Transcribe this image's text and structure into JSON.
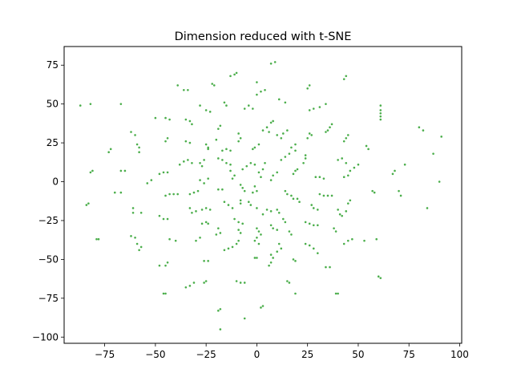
{
  "chart_data": {
    "type": "scatter",
    "title": "Dimension reduced with t-SNE",
    "xlabel": "",
    "ylabel": "",
    "xlim": [
      -95,
      101
    ],
    "ylim": [
      -104,
      87
    ],
    "xticks": [
      -75,
      -50,
      -25,
      0,
      25,
      50,
      75,
      100
    ],
    "yticks": [
      75,
      50,
      25,
      0,
      -25,
      -50,
      -75,
      -100
    ],
    "grid": false,
    "legend": "none",
    "point_color": "#2ca02c",
    "series": [
      {
        "points": [
          [
            -87,
            49
          ],
          [
            -82,
            50
          ],
          [
            -67,
            50
          ],
          [
            -39,
            62
          ],
          [
            -36,
            59
          ],
          [
            -34,
            59
          ],
          [
            -22,
            63
          ],
          [
            -21,
            62
          ],
          [
            -13,
            68
          ],
          [
            -11,
            69
          ],
          [
            -10,
            70
          ],
          [
            0,
            64
          ],
          [
            7,
            76
          ],
          [
            9,
            77
          ],
          [
            11,
            53
          ],
          [
            14,
            51
          ],
          [
            25,
            60
          ],
          [
            26,
            62
          ],
          [
            43,
            66
          ],
          [
            44,
            68
          ],
          [
            61,
            49
          ],
          [
            61,
            46
          ],
          [
            61,
            44
          ],
          [
            61,
            42
          ],
          [
            61,
            40
          ],
          [
            -50,
            41
          ],
          [
            -45,
            41
          ],
          [
            -43,
            40
          ],
          [
            -35,
            40
          ],
          [
            -33,
            39
          ],
          [
            -32,
            37
          ],
          [
            -28,
            49
          ],
          [
            -25,
            46
          ],
          [
            -23,
            45
          ],
          [
            -16,
            51
          ],
          [
            -15,
            49
          ],
          [
            -6,
            47
          ],
          [
            -4,
            49
          ],
          [
            -2,
            47
          ],
          [
            0,
            56
          ],
          [
            2,
            58
          ],
          [
            4,
            59
          ],
          [
            26,
            46
          ],
          [
            28,
            47
          ],
          [
            31,
            48
          ],
          [
            34,
            50
          ],
          [
            -62,
            32
          ],
          [
            -60,
            30
          ],
          [
            -59,
            24
          ],
          [
            -58,
            22
          ],
          [
            -58,
            19
          ],
          [
            -73,
            19
          ],
          [
            -72,
            21
          ],
          [
            -45,
            26
          ],
          [
            -44,
            28
          ],
          [
            -35,
            26
          ],
          [
            -33,
            25
          ],
          [
            -25,
            24
          ],
          [
            -24,
            22
          ],
          [
            -24,
            21
          ],
          [
            -18,
            36
          ],
          [
            -19,
            34
          ],
          [
            -20,
            27
          ],
          [
            -13,
            20
          ],
          [
            -15,
            21
          ],
          [
            -17,
            20
          ],
          [
            -9,
            31
          ],
          [
            -8,
            28
          ],
          [
            -9,
            26
          ],
          [
            -1,
            22
          ],
          [
            1,
            24
          ],
          [
            -2,
            21
          ],
          [
            3,
            33
          ],
          [
            5,
            35
          ],
          [
            7,
            38
          ],
          [
            8,
            39
          ],
          [
            6,
            32
          ],
          [
            10,
            30
          ],
          [
            12,
            28
          ],
          [
            13,
            31
          ],
          [
            15,
            33
          ],
          [
            17,
            22
          ],
          [
            19,
            24
          ],
          [
            19,
            20
          ],
          [
            25,
            28
          ],
          [
            26,
            31
          ],
          [
            27,
            30
          ],
          [
            35,
            33
          ],
          [
            36,
            35
          ],
          [
            37,
            37
          ],
          [
            34,
            32
          ],
          [
            43,
            26
          ],
          [
            44,
            28
          ],
          [
            45,
            30
          ],
          [
            54,
            23
          ],
          [
            55,
            21
          ],
          [
            80,
            35
          ],
          [
            82,
            33
          ],
          [
            91,
            29
          ],
          [
            87,
            18
          ],
          [
            -82,
            6
          ],
          [
            -81,
            7
          ],
          [
            -67,
            7
          ],
          [
            -65,
            7
          ],
          [
            -54,
            -1
          ],
          [
            -52,
            1
          ],
          [
            -48,
            5
          ],
          [
            -46,
            6
          ],
          [
            -44,
            6
          ],
          [
            -38,
            11
          ],
          [
            -36,
            13
          ],
          [
            -34,
            14
          ],
          [
            -32,
            12
          ],
          [
            -28,
            12
          ],
          [
            -27,
            10
          ],
          [
            -26,
            14
          ],
          [
            -19,
            15
          ],
          [
            -17,
            14
          ],
          [
            -15,
            12
          ],
          [
            -13,
            11
          ],
          [
            -11,
            4
          ],
          [
            -12,
            2
          ],
          [
            -13,
            7
          ],
          [
            -7,
            8
          ],
          [
            -5,
            10
          ],
          [
            -3,
            12
          ],
          [
            -1,
            11
          ],
          [
            1,
            6
          ],
          [
            3,
            8
          ],
          [
            4,
            12
          ],
          [
            2,
            3
          ],
          [
            7,
            1
          ],
          [
            8,
            4
          ],
          [
            10,
            6
          ],
          [
            12,
            14
          ],
          [
            14,
            16
          ],
          [
            16,
            18
          ],
          [
            18,
            5
          ],
          [
            19,
            7
          ],
          [
            20,
            8
          ],
          [
            23,
            12
          ],
          [
            24,
            15
          ],
          [
            24,
            17
          ],
          [
            29,
            3
          ],
          [
            31,
            3
          ],
          [
            33,
            2
          ],
          [
            40,
            14
          ],
          [
            42,
            15
          ],
          [
            44,
            12
          ],
          [
            45,
            4
          ],
          [
            43,
            3
          ],
          [
            46,
            7
          ],
          [
            48,
            9
          ],
          [
            50,
            11
          ],
          [
            68,
            7
          ],
          [
            67,
            5
          ],
          [
            73,
            11
          ],
          [
            90,
            0
          ],
          [
            -28,
            1
          ],
          [
            -26,
            -1
          ],
          [
            -24,
            2
          ],
          [
            -17,
            -5
          ],
          [
            -19,
            -5
          ],
          [
            -70,
            -7
          ],
          [
            -67,
            -7
          ],
          [
            -84,
            -15
          ],
          [
            -83,
            -14
          ],
          [
            -61,
            -17
          ],
          [
            -61,
            -20
          ],
          [
            -57,
            -20
          ],
          [
            -45,
            -9
          ],
          [
            -43,
            -8
          ],
          [
            -41,
            -8
          ],
          [
            -39,
            -8
          ],
          [
            -33,
            -8
          ],
          [
            -31,
            -7
          ],
          [
            -29,
            -6
          ],
          [
            -33,
            -17
          ],
          [
            -32,
            -20
          ],
          [
            -30,
            -19
          ],
          [
            -27,
            -18
          ],
          [
            -25,
            -17
          ],
          [
            -23,
            -18
          ],
          [
            -16,
            -13
          ],
          [
            -14,
            -15
          ],
          [
            -12,
            -17
          ],
          [
            -8,
            -2
          ],
          [
            -7,
            -4
          ],
          [
            -6,
            -6
          ],
          [
            -8,
            -12
          ],
          [
            -8,
            -14
          ],
          [
            -4,
            -13
          ],
          [
            -3,
            -15
          ],
          [
            0,
            -17
          ],
          [
            -2,
            -7
          ],
          [
            0,
            -6
          ],
          [
            -1,
            -3
          ],
          [
            3,
            -21
          ],
          [
            5,
            -18
          ],
          [
            7,
            -19
          ],
          [
            10,
            -18
          ],
          [
            11,
            -20
          ],
          [
            14,
            -6
          ],
          [
            15,
            -8
          ],
          [
            17,
            -9
          ],
          [
            18,
            -11
          ],
          [
            20,
            -11
          ],
          [
            21,
            -13
          ],
          [
            27,
            -15
          ],
          [
            28,
            -17
          ],
          [
            30,
            -18
          ],
          [
            31,
            -8
          ],
          [
            33,
            -9
          ],
          [
            35,
            -9
          ],
          [
            37,
            -9
          ],
          [
            40,
            -18
          ],
          [
            41,
            -21
          ],
          [
            42,
            -22
          ],
          [
            44,
            -19
          ],
          [
            45,
            -14
          ],
          [
            46,
            -12
          ],
          [
            57,
            -6
          ],
          [
            58,
            -7
          ],
          [
            70,
            -6
          ],
          [
            71,
            -9
          ],
          [
            84,
            -17
          ],
          [
            -48,
            -22
          ],
          [
            -46,
            -24
          ],
          [
            -44,
            -24
          ],
          [
            -27,
            -27
          ],
          [
            -25,
            -26
          ],
          [
            -24,
            -27
          ],
          [
            -19,
            -30
          ],
          [
            -18,
            -33
          ],
          [
            -20,
            -34
          ],
          [
            -11,
            -24
          ],
          [
            -9,
            -26
          ],
          [
            -7,
            -27
          ],
          [
            -9,
            -31
          ],
          [
            -8,
            -33
          ],
          [
            0,
            -30
          ],
          [
            1,
            -32
          ],
          [
            2,
            -34
          ],
          [
            7,
            -28
          ],
          [
            8,
            -30
          ],
          [
            10,
            -31
          ],
          [
            13,
            -24
          ],
          [
            14,
            -26
          ],
          [
            16,
            -32
          ],
          [
            17,
            -34
          ],
          [
            24,
            -26
          ],
          [
            26,
            -27
          ],
          [
            28,
            -28
          ],
          [
            30,
            -28
          ],
          [
            38,
            -30
          ],
          [
            39,
            -32
          ],
          [
            -79,
            -37
          ],
          [
            -78,
            -37
          ],
          [
            -62,
            -35
          ],
          [
            -60,
            -36
          ],
          [
            -59,
            -40
          ],
          [
            -58,
            -44
          ],
          [
            -57,
            -42
          ],
          [
            -43,
            -37
          ],
          [
            -40,
            -38
          ],
          [
            -30,
            -38
          ],
          [
            -28,
            -36
          ],
          [
            -16,
            -44
          ],
          [
            -14,
            -43
          ],
          [
            -12,
            -42
          ],
          [
            -10,
            -40
          ],
          [
            -9,
            -38
          ],
          [
            0,
            -36
          ],
          [
            -1,
            -38
          ],
          [
            1,
            -40
          ],
          [
            11,
            -40
          ],
          [
            12,
            -43
          ],
          [
            10,
            -45
          ],
          [
            7,
            -47
          ],
          [
            8,
            -49
          ],
          [
            24,
            -40
          ],
          [
            26,
            -41
          ],
          [
            28,
            -43
          ],
          [
            30,
            -46
          ],
          [
            43,
            -40
          ],
          [
            45,
            -38
          ],
          [
            47,
            -37
          ],
          [
            53,
            -38
          ],
          [
            59,
            -37
          ],
          [
            -48,
            -54
          ],
          [
            -44,
            -52
          ],
          [
            -45,
            -54
          ],
          [
            -26,
            -51
          ],
          [
            -24,
            -51
          ],
          [
            -1,
            -49
          ],
          [
            0,
            -49
          ],
          [
            7,
            -52
          ],
          [
            6,
            -54
          ],
          [
            18,
            -50
          ],
          [
            19,
            -51
          ],
          [
            34,
            -55
          ],
          [
            36,
            -55
          ],
          [
            -35,
            -68
          ],
          [
            -33,
            -67
          ],
          [
            -31,
            -65
          ],
          [
            -26,
            -65
          ],
          [
            -25,
            -64
          ],
          [
            -10,
            -64
          ],
          [
            -8,
            -65
          ],
          [
            -6,
            -65
          ],
          [
            15,
            -64
          ],
          [
            16,
            -65
          ],
          [
            19,
            -72
          ],
          [
            39,
            -72
          ],
          [
            40,
            -72
          ],
          [
            60,
            -61
          ],
          [
            61,
            -62
          ],
          [
            -46,
            -72
          ],
          [
            -45,
            -72
          ],
          [
            -19,
            -83
          ],
          [
            -18,
            -82
          ],
          [
            2,
            -81
          ],
          [
            3,
            -80
          ],
          [
            -6,
            -88
          ],
          [
            -18,
            -95
          ]
        ]
      }
    ]
  }
}
